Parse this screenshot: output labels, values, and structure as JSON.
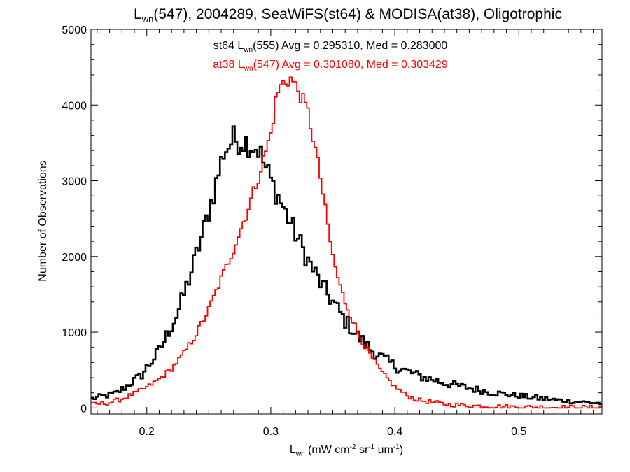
{
  "chart_data": {
    "type": "line",
    "title": {
      "base": "L",
      "sub": "wn",
      "rest": "(547), 2004289, SeaWiFS(st64) & MODISA(at38), Oligotrophic"
    },
    "xlabel": {
      "base": "L",
      "sub": "wn",
      "p1": " (mW cm",
      "s1": "-2",
      "p2": " sr",
      "s2": "-1",
      "p3": " um",
      "s3": "-1",
      "p4": ")"
    },
    "ylabel": "Number of Observations",
    "xlim": [
      0.155,
      0.567
    ],
    "ylim": [
      -80,
      5000
    ],
    "xticks": [
      0.2,
      0.3,
      0.4,
      0.5
    ],
    "xtick_labels": [
      "0.2",
      "0.3",
      "0.4",
      "0.5"
    ],
    "yticks": [
      0,
      1000,
      2000,
      3000,
      4000,
      5000
    ],
    "ytick_labels": [
      "0",
      "1000",
      "2000",
      "3000",
      "4000",
      "5000"
    ],
    "annotations": [
      {
        "pre": "st64 L",
        "sub": "wn",
        "post": "(555) Avg = 0.295310, Med = 0.283000",
        "color": "#000000"
      },
      {
        "pre": "at38 L",
        "sub": "wn",
        "post": "(547) Avg = 0.301080, Med = 0.303429",
        "color": "#ff0000"
      }
    ],
    "grid": false,
    "series": [
      {
        "id": "st64",
        "color": "#000000",
        "stroke_weight": "bold",
        "points": [
          [
            0.155,
            120
          ],
          [
            0.175,
            190
          ],
          [
            0.195,
            420
          ],
          [
            0.21,
            750
          ],
          [
            0.225,
            1250
          ],
          [
            0.235,
            1750
          ],
          [
            0.245,
            2300
          ],
          [
            0.255,
            2900
          ],
          [
            0.262,
            3380
          ],
          [
            0.27,
            3550
          ],
          [
            0.28,
            3520
          ],
          [
            0.29,
            3420
          ],
          [
            0.3,
            3000
          ],
          [
            0.31,
            2650
          ],
          [
            0.32,
            2300
          ],
          [
            0.33,
            1950
          ],
          [
            0.34,
            1650
          ],
          [
            0.35,
            1400
          ],
          [
            0.36,
            1150
          ],
          [
            0.37,
            950
          ],
          [
            0.38,
            780
          ],
          [
            0.39,
            660
          ],
          [
            0.4,
            550
          ],
          [
            0.42,
            420
          ],
          [
            0.44,
            330
          ],
          [
            0.46,
            260
          ],
          [
            0.48,
            200
          ],
          [
            0.5,
            160
          ],
          [
            0.52,
            120
          ],
          [
            0.54,
            90
          ],
          [
            0.567,
            60
          ]
        ]
      },
      {
        "id": "at38",
        "color": "#ff0000",
        "stroke_weight": "normal",
        "points": [
          [
            0.155,
            40
          ],
          [
            0.17,
            70
          ],
          [
            0.18,
            120
          ],
          [
            0.19,
            190
          ],
          [
            0.2,
            270
          ],
          [
            0.21,
            380
          ],
          [
            0.22,
            520
          ],
          [
            0.23,
            720
          ],
          [
            0.24,
            980
          ],
          [
            0.25,
            1300
          ],
          [
            0.26,
            1700
          ],
          [
            0.27,
            2100
          ],
          [
            0.28,
            2550
          ],
          [
            0.29,
            3050
          ],
          [
            0.3,
            3620
          ],
          [
            0.305,
            4150
          ],
          [
            0.31,
            4300
          ],
          [
            0.316,
            4350
          ],
          [
            0.322,
            4200
          ],
          [
            0.33,
            3900
          ],
          [
            0.335,
            3500
          ],
          [
            0.34,
            3050
          ],
          [
            0.345,
            2500
          ],
          [
            0.35,
            2000
          ],
          [
            0.355,
            1650
          ],
          [
            0.36,
            1400
          ],
          [
            0.37,
            1000
          ],
          [
            0.38,
            700
          ],
          [
            0.39,
            460
          ],
          [
            0.4,
            280
          ],
          [
            0.41,
            160
          ],
          [
            0.42,
            100
          ],
          [
            0.44,
            50
          ],
          [
            0.46,
            30
          ],
          [
            0.5,
            12
          ],
          [
            0.567,
            5
          ]
        ]
      }
    ]
  }
}
